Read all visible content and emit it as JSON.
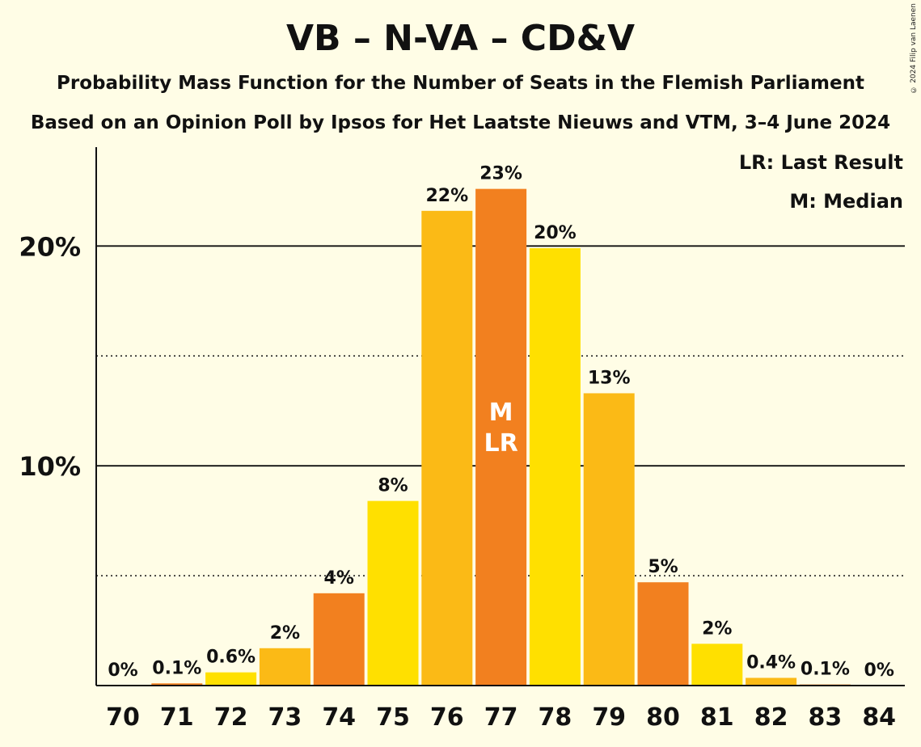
{
  "title": "VB – N-VA – CD&V",
  "subtitle1": "Probability Mass Function for the Number of Seats in the Flemish Parliament",
  "subtitle2": "Based on an Opinion Poll by Ipsos for Het Laatste Nieuws and VTM, 3–4 June 2024",
  "copyright": "© 2024 Filip van Laenen",
  "legend": {
    "lr": "LR: Last Result",
    "m": "M: Median"
  },
  "chart_data": {
    "type": "bar",
    "categories": [
      "70",
      "71",
      "72",
      "73",
      "74",
      "75",
      "76",
      "77",
      "78",
      "79",
      "80",
      "81",
      "82",
      "83",
      "84"
    ],
    "values": [
      0,
      0.1,
      0.6,
      1.7,
      4.2,
      8.4,
      21.6,
      22.6,
      19.9,
      13.3,
      4.7,
      1.9,
      0.35,
      0.05,
      0
    ],
    "labels": [
      "0%",
      "0.1%",
      "0.6%",
      "2%",
      "4%",
      "8%",
      "22%",
      "23%",
      "20%",
      "13%",
      "5%",
      "2%",
      "0.4%",
      "0.1%",
      "0%"
    ],
    "colors": [
      "#FBBA16",
      "#F2801F",
      "#FFE000",
      "#FBBA16",
      "#F2801F",
      "#FFE000",
      "#FBBA16",
      "#F2801F",
      "#FFE000",
      "#FBBA16",
      "#F2801F",
      "#FFE000",
      "#FBBA16",
      "#F2801F",
      "#FFE000"
    ],
    "ylim": [
      0,
      24.5
    ],
    "yticks": [
      {
        "value": 10,
        "label": "10%"
      },
      {
        "value": 20,
        "label": "20%"
      }
    ],
    "minor_gridlines": [
      5,
      15
    ],
    "median_index": 7,
    "last_result_index": 7,
    "markers": {
      "median": "M",
      "last_result": "LR"
    },
    "legend_position": "top-right"
  }
}
